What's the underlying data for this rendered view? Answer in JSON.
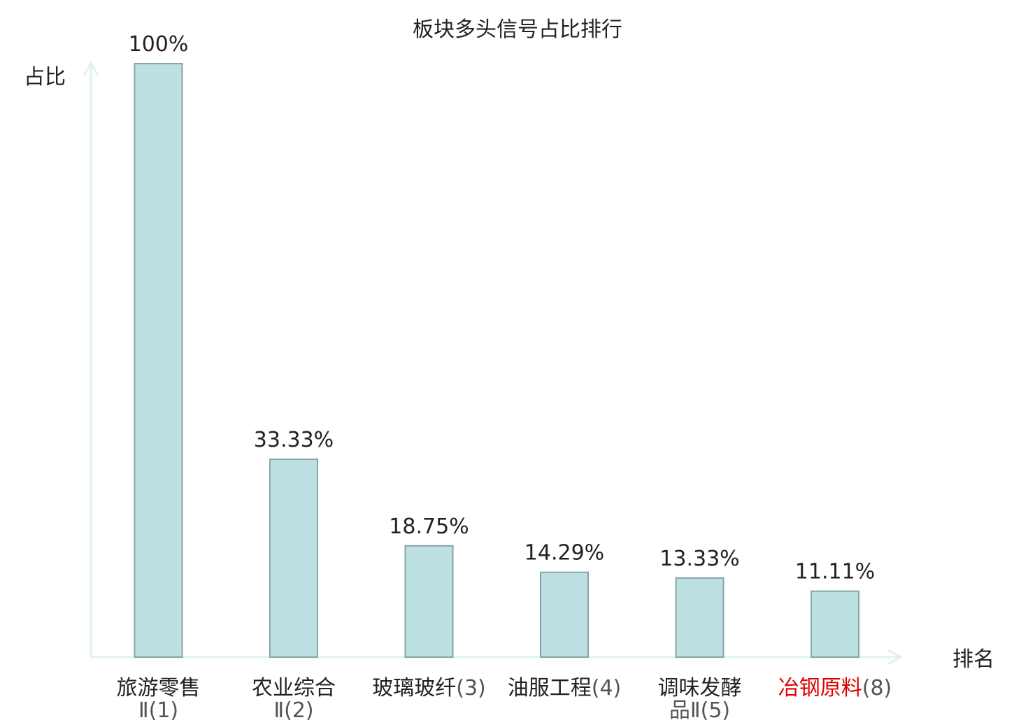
{
  "chart_data": {
    "type": "bar",
    "title": "板块多头信号占比排行",
    "ylabel": "占比",
    "xlabel": "排名",
    "ylim": [
      0,
      100
    ],
    "grid": false,
    "legend": "none",
    "categories": [
      {
        "name": "旅游零售",
        "suffix": "Ⅱ(1)",
        "highlight": false
      },
      {
        "name": "农业综合",
        "suffix": "Ⅱ(2)",
        "highlight": false
      },
      {
        "name": "玻璃玻纤",
        "suffix": "(3)",
        "highlight": false
      },
      {
        "name": "油服工程",
        "suffix": "(4)",
        "highlight": false
      },
      {
        "name": "调味发酵",
        "suffix": "品Ⅱ(5)",
        "highlight": false
      },
      {
        "name": "冶钢原料",
        "suffix": "(8)",
        "highlight": true
      }
    ],
    "values": [
      100,
      33.33,
      18.75,
      14.29,
      13.33,
      11.11
    ],
    "value_labels": [
      "100%",
      "33.33%",
      "18.75%",
      "14.29%",
      "13.33%",
      "11.11%"
    ],
    "colors": {
      "bar_fill": "#bde0e2",
      "bar_stroke": "#86a5a7",
      "axis": "#e0f2ef",
      "text": "#222222",
      "highlight_text": "#e00000"
    }
  }
}
